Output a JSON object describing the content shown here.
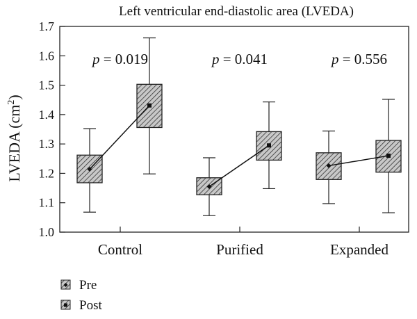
{
  "chart_data": {
    "type": "boxplot",
    "title": "Left ventricular end-diastolic area (LVEDA)",
    "ylabel_base": "LVEDA (cm",
    "ylabel_sup": "2",
    "ylabel_close": ")",
    "ylim": [
      1.0,
      1.7
    ],
    "yticks": [
      "1.0",
      "1.1",
      "1.2",
      "1.3",
      "1.4",
      "1.5",
      "1.6",
      "1.7"
    ],
    "categories": [
      "Control",
      "Purified",
      "Expanded"
    ],
    "pvalues": [
      {
        "p": "p",
        "rest": " = 0.019"
      },
      {
        "p": "p",
        "rest": " = 0.041"
      },
      {
        "p": "p",
        "rest": " = 0.556"
      }
    ],
    "series": [
      {
        "name": "Pre",
        "boxes": [
          {
            "min": 1.068,
            "q1": 1.168,
            "median": 1.214,
            "q3": 1.262,
            "max": 1.352
          },
          {
            "min": 1.056,
            "q1": 1.127,
            "median": 1.155,
            "q3": 1.185,
            "max": 1.253
          },
          {
            "min": 1.097,
            "q1": 1.179,
            "median": 1.226,
            "q3": 1.27,
            "max": 1.344
          }
        ]
      },
      {
        "name": "Post",
        "boxes": [
          {
            "min": 1.198,
            "q1": 1.356,
            "median": 1.431,
            "q3": 1.503,
            "max": 1.661
          },
          {
            "min": 1.148,
            "q1": 1.245,
            "median": 1.295,
            "q3": 1.342,
            "max": 1.443
          },
          {
            "min": 1.066,
            "q1": 1.204,
            "median": 1.26,
            "q3": 1.312,
            "max": 1.452
          }
        ]
      }
    ],
    "legend_position": "bottom-left",
    "grid": false
  }
}
